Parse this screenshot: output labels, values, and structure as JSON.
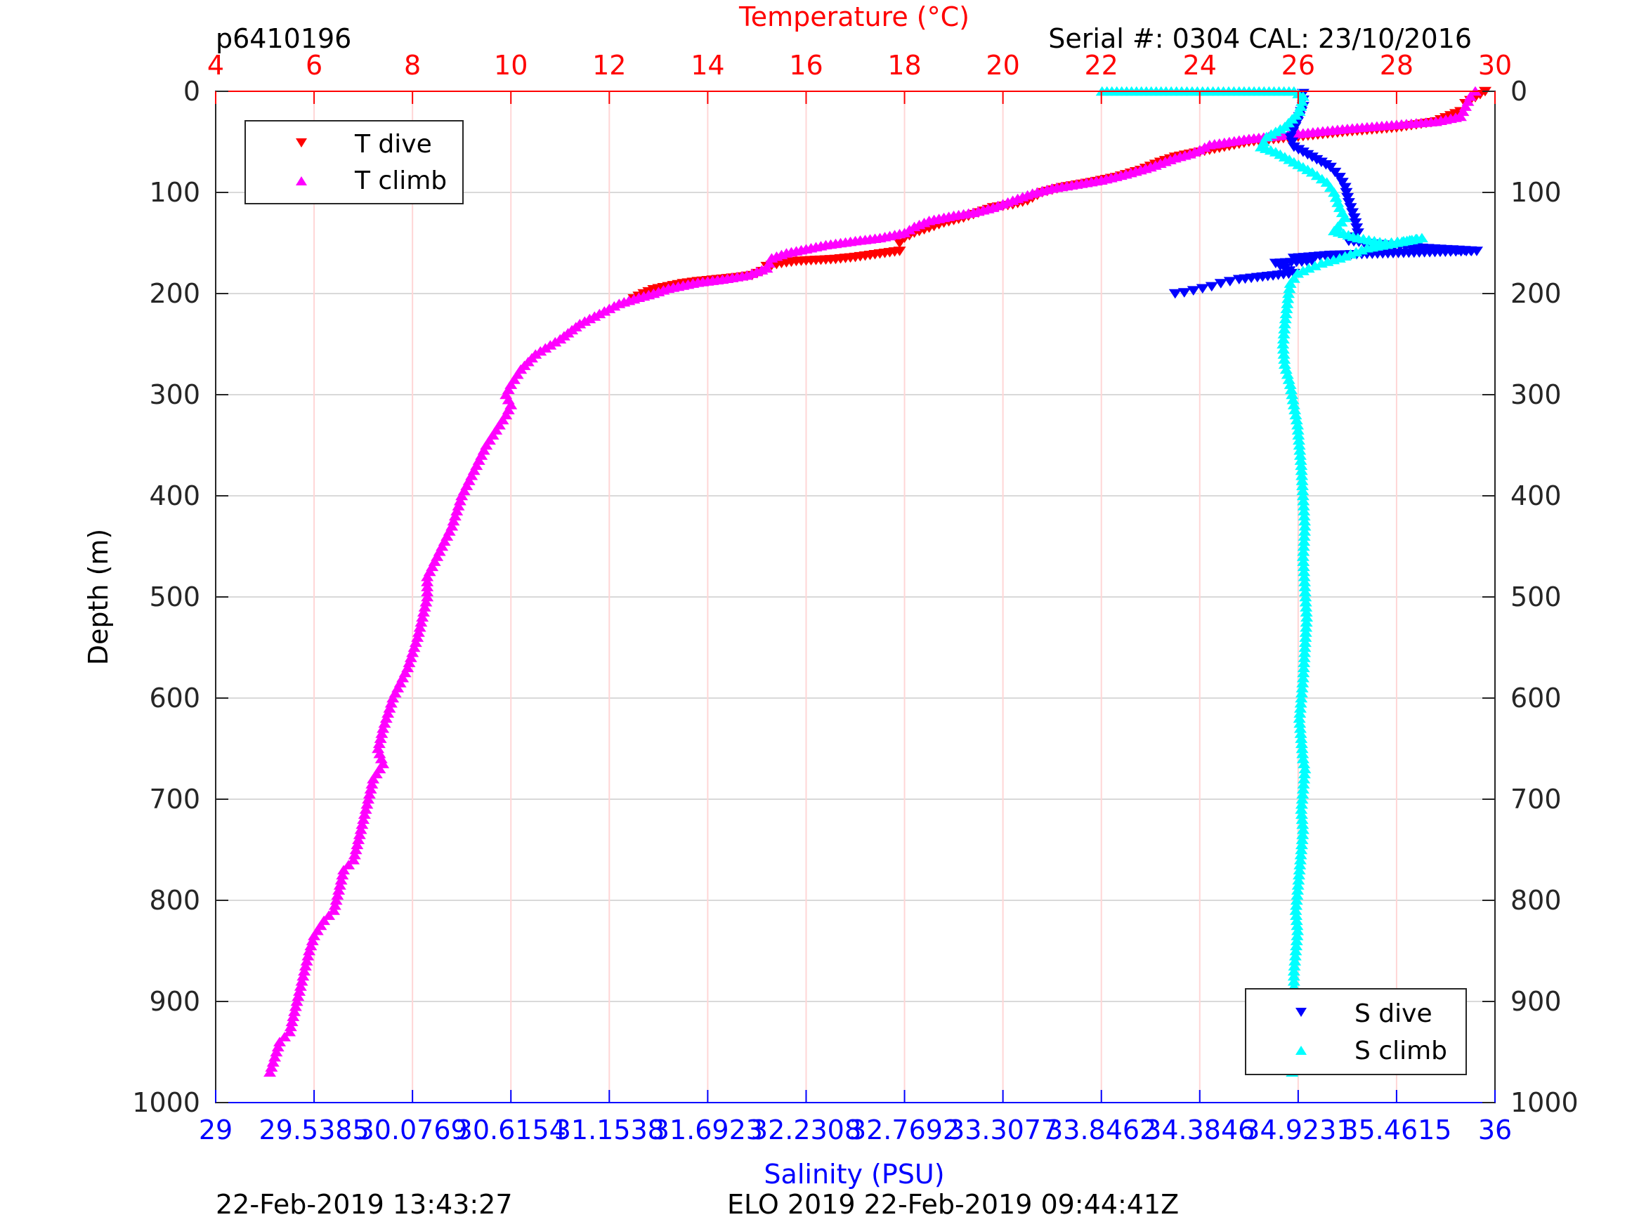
{
  "header": {
    "glider_id": "p6410196",
    "serial_cal": "Serial #: 0304  CAL: 23/10/2016"
  },
  "footer": {
    "left": "22-Feb-2019 13:43:27",
    "center": "ELO 2019 22-Feb-2019 09:44:41Z"
  },
  "colors": {
    "t_dive": "#ff0000",
    "t_climb": "#ff00ff",
    "s_dive": "#0000ff",
    "s_climb": "#00ffff",
    "temperature_axis": "#ff0000",
    "salinity_axis": "#0000ff"
  },
  "chart_data": {
    "type": "scatter",
    "title": "",
    "ylabel": "Depth (m)",
    "ylim": [
      1000,
      0
    ],
    "yticks": [
      "0",
      "100",
      "200",
      "300",
      "400",
      "500",
      "600",
      "700",
      "800",
      "900",
      "1000"
    ],
    "temperature_axis": {
      "label": "Temperature (°C)",
      "range": [
        4,
        30
      ],
      "ticks": [
        "4",
        "6",
        "8",
        "10",
        "12",
        "14",
        "16",
        "18",
        "20",
        "22",
        "24",
        "26",
        "28",
        "30"
      ]
    },
    "salinity_axis": {
      "label": "Salinity (PSU)",
      "range": [
        29,
        36
      ],
      "ticks": [
        "29",
        "29.5385",
        "30.0769",
        "30.6154",
        "31.1538",
        "31.6923",
        "32.2308",
        "32.7692",
        "33.3077",
        "33.8462",
        "34.3846",
        "34.9231",
        "35.4615",
        "36"
      ]
    },
    "grid": "vertical red, horizontal gray",
    "legends": [
      {
        "position": "top-left",
        "entries": [
          "T dive",
          "T climb"
        ]
      },
      {
        "position": "bottom-right",
        "entries": [
          "S dive",
          "S climb"
        ]
      }
    ],
    "series": [
      {
        "name": "T dive",
        "axis": "temperature",
        "marker": "triangle-down",
        "points": [
          [
            29.8,
            0
          ],
          [
            29.7,
            3
          ],
          [
            29.6,
            6
          ],
          [
            29.4,
            12
          ],
          [
            29.3,
            20
          ],
          [
            28.8,
            30
          ],
          [
            28,
            36
          ],
          [
            27,
            40
          ],
          [
            26,
            45
          ],
          [
            25,
            50
          ],
          [
            24.5,
            55
          ],
          [
            24.2,
            58
          ],
          [
            24,
            60
          ],
          [
            23.8,
            62
          ],
          [
            23.5,
            65
          ],
          [
            23.2,
            70
          ],
          [
            22.8,
            78
          ],
          [
            22.3,
            85
          ],
          [
            21.8,
            90
          ],
          [
            21.2,
            95
          ],
          [
            20.8,
            100
          ],
          [
            20.5,
            108
          ],
          [
            20.2,
            112
          ],
          [
            19.8,
            115
          ],
          [
            19.5,
            120
          ],
          [
            19.2,
            125
          ],
          [
            18.8,
            130
          ],
          [
            18.5,
            135
          ],
          [
            18.2,
            140
          ],
          [
            18,
            145
          ],
          [
            17.9,
            150
          ],
          [
            17.9,
            158
          ],
          [
            17.6,
            160
          ],
          [
            17.3,
            162
          ],
          [
            17,
            164
          ],
          [
            16.6,
            166
          ],
          [
            16.2,
            167
          ],
          [
            15.8,
            168
          ],
          [
            15.5,
            170
          ],
          [
            15.2,
            173
          ],
          [
            15.1,
            178
          ],
          [
            14.9,
            182
          ],
          [
            14.6,
            184
          ],
          [
            14.2,
            186
          ],
          [
            13.8,
            188
          ],
          [
            13.5,
            190
          ],
          [
            13.2,
            193
          ],
          [
            12.9,
            196
          ],
          [
            12.7,
            200
          ],
          [
            12.5,
            205
          ]
        ]
      },
      {
        "name": "T climb",
        "axis": "temperature",
        "marker": "triangle-up",
        "points": [
          [
            29.6,
            0
          ],
          [
            29.5,
            5
          ],
          [
            29.4,
            15
          ],
          [
            29.3,
            25
          ],
          [
            28.8,
            30
          ],
          [
            28,
            33
          ],
          [
            27,
            37
          ],
          [
            26,
            42
          ],
          [
            25,
            47
          ],
          [
            24.2,
            53
          ],
          [
            24,
            58
          ],
          [
            23.8,
            62
          ],
          [
            23.5,
            66
          ],
          [
            23,
            75
          ],
          [
            22.5,
            82
          ],
          [
            22,
            88
          ],
          [
            21.5,
            92
          ],
          [
            21,
            96
          ],
          [
            20.6,
            101
          ],
          [
            20.2,
            108
          ],
          [
            19.8,
            115
          ],
          [
            19.4,
            120
          ],
          [
            19,
            123
          ],
          [
            18.5,
            128
          ],
          [
            18.2,
            134
          ],
          [
            18,
            140
          ],
          [
            17.5,
            145
          ],
          [
            17,
            148
          ],
          [
            16.4,
            152
          ],
          [
            16,
            156
          ],
          [
            15.6,
            160
          ],
          [
            15.3,
            165
          ],
          [
            15.2,
            175
          ],
          [
            14.8,
            182
          ],
          [
            14.3,
            186
          ],
          [
            13.8,
            189
          ],
          [
            13.5,
            192
          ],
          [
            13.2,
            195
          ],
          [
            12.9,
            200
          ],
          [
            12.6,
            204
          ],
          [
            12.2,
            210
          ],
          [
            11.8,
            220
          ],
          [
            11.4,
            230
          ],
          [
            11,
            245
          ],
          [
            10.5,
            260
          ],
          [
            10.2,
            275
          ],
          [
            10,
            290
          ],
          [
            9.9,
            300
          ],
          [
            10,
            310
          ],
          [
            9.9,
            320
          ],
          [
            9.7,
            335
          ],
          [
            9.5,
            350
          ],
          [
            9.3,
            370
          ],
          [
            9.1,
            390
          ],
          [
            9,
            400
          ],
          [
            8.9,
            415
          ],
          [
            8.8,
            430
          ],
          [
            8.6,
            450
          ],
          [
            8.4,
            470
          ],
          [
            8.3,
            480
          ],
          [
            8.3,
            500
          ],
          [
            8.2,
            520
          ],
          [
            8.1,
            540
          ],
          [
            8,
            555
          ],
          [
            7.9,
            570
          ],
          [
            7.7,
            590
          ],
          [
            7.6,
            600
          ],
          [
            7.5,
            615
          ],
          [
            7.4,
            630
          ],
          [
            7.3,
            650
          ],
          [
            7.4,
            665
          ],
          [
            7.2,
            680
          ],
          [
            7.1,
            700
          ],
          [
            7,
            720
          ],
          [
            6.9,
            740
          ],
          [
            6.8,
            760
          ],
          [
            6.6,
            770
          ],
          [
            6.5,
            790
          ],
          [
            6.4,
            810
          ],
          [
            6.2,
            820
          ],
          [
            6,
            835
          ],
          [
            5.9,
            850
          ],
          [
            5.8,
            870
          ],
          [
            5.7,
            890
          ],
          [
            5.6,
            910
          ],
          [
            5.5,
            930
          ],
          [
            5.3,
            940
          ],
          [
            5.2,
            955
          ],
          [
            5.1,
            970
          ]
        ]
      },
      {
        "name": "S dive",
        "axis": "salinity",
        "marker": "triangle-down",
        "points": [
          [
            34.95,
            2
          ],
          [
            34.95,
            15
          ],
          [
            34.92,
            30
          ],
          [
            34.88,
            45
          ],
          [
            34.9,
            55
          ],
          [
            35.0,
            65
          ],
          [
            35.1,
            75
          ],
          [
            35.15,
            85
          ],
          [
            35.18,
            95
          ],
          [
            35.2,
            110
          ],
          [
            35.23,
            125
          ],
          [
            35.25,
            140
          ],
          [
            35.2,
            148
          ],
          [
            35.45,
            153
          ],
          [
            35.6,
            155
          ],
          [
            35.7,
            156
          ],
          [
            35.8,
            157
          ],
          [
            35.9,
            158
          ],
          [
            35.5,
            160
          ],
          [
            35.1,
            162
          ],
          [
            34.9,
            165
          ],
          [
            35.0,
            168
          ],
          [
            34.8,
            170
          ],
          [
            34.85,
            175
          ],
          [
            34.9,
            180
          ],
          [
            34.7,
            184
          ],
          [
            34.6,
            186
          ],
          [
            34.55,
            188
          ],
          [
            34.5,
            190
          ],
          [
            34.45,
            193
          ],
          [
            34.4,
            195
          ],
          [
            34.35,
            197
          ],
          [
            34.3,
            199
          ],
          [
            34.25,
            200
          ]
        ]
      },
      {
        "name": "S climb",
        "axis": "salinity",
        "marker": "triangle-up",
        "points": [
          [
            33.85,
            0
          ],
          [
            34.2,
            0
          ],
          [
            34.4,
            0
          ],
          [
            34.6,
            0
          ],
          [
            34.9,
            0
          ],
          [
            34.95,
            5
          ],
          [
            34.93,
            20
          ],
          [
            34.85,
            35
          ],
          [
            34.75,
            45
          ],
          [
            34.72,
            55
          ],
          [
            34.8,
            60
          ],
          [
            34.9,
            70
          ],
          [
            35.0,
            80
          ],
          [
            35.08,
            90
          ],
          [
            35.12,
            100
          ],
          [
            35.15,
            115
          ],
          [
            35.18,
            125
          ],
          [
            35.12,
            138
          ],
          [
            35.25,
            145
          ],
          [
            35.4,
            150
          ],
          [
            35.5,
            148
          ],
          [
            35.6,
            145
          ],
          [
            35.3,
            155
          ],
          [
            35.15,
            165
          ],
          [
            35.05,
            170
          ],
          [
            34.98,
            175
          ],
          [
            34.92,
            180
          ],
          [
            34.9,
            185
          ],
          [
            34.88,
            190
          ],
          [
            34.87,
            200
          ],
          [
            34.86,
            215
          ],
          [
            34.85,
            230
          ],
          [
            34.84,
            250
          ],
          [
            34.85,
            270
          ],
          [
            34.88,
            290
          ],
          [
            34.9,
            310
          ],
          [
            34.92,
            330
          ],
          [
            34.93,
            350
          ],
          [
            34.94,
            370
          ],
          [
            34.95,
            400
          ],
          [
            34.96,
            430
          ],
          [
            34.95,
            460
          ],
          [
            34.96,
            490
          ],
          [
            34.97,
            520
          ],
          [
            34.96,
            550
          ],
          [
            34.95,
            580
          ],
          [
            34.94,
            600
          ],
          [
            34.93,
            620
          ],
          [
            34.94,
            640
          ],
          [
            34.95,
            660
          ],
          [
            34.96,
            670
          ],
          [
            34.95,
            690
          ],
          [
            34.94,
            710
          ],
          [
            34.95,
            730
          ],
          [
            34.94,
            750
          ],
          [
            34.93,
            770
          ],
          [
            34.92,
            790
          ],
          [
            34.91,
            810
          ],
          [
            34.92,
            830
          ],
          [
            34.91,
            850
          ],
          [
            34.9,
            870
          ],
          [
            34.9,
            890
          ],
          [
            34.91,
            910
          ],
          [
            34.9,
            930
          ],
          [
            34.89,
            950
          ],
          [
            34.89,
            970
          ]
        ]
      }
    ]
  }
}
